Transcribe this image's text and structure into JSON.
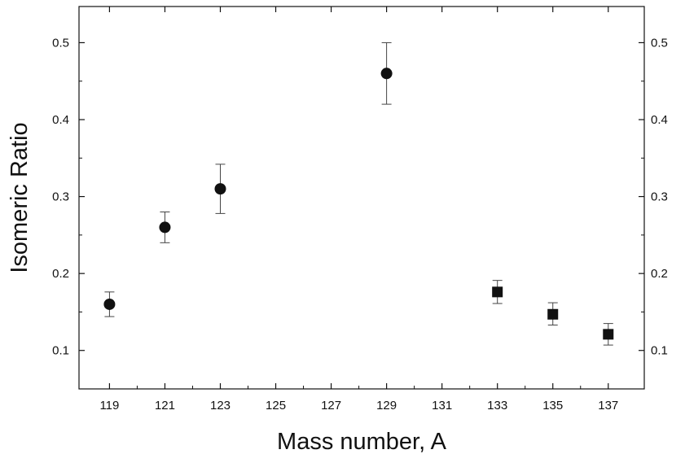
{
  "chart_data": {
    "type": "scatter",
    "title": "",
    "xlabel": "Mass number, A",
    "ylabel": "Isomeric Ratio",
    "xlim": [
      117.9,
      138.3
    ],
    "ylim": [
      0.05,
      0.547
    ],
    "x_ticks": [
      119,
      121,
      123,
      125,
      127,
      129,
      131,
      133,
      135,
      137
    ],
    "x_tick_labels": [
      "119",
      "121",
      "123",
      "125",
      "127",
      "129",
      "131",
      "133",
      "135",
      "137"
    ],
    "y_ticks": [
      0.1,
      0.2,
      0.3,
      0.4,
      0.5
    ],
    "y_tick_labels": [
      "0.1",
      "0.2",
      "0.3",
      "0.4",
      "0.5"
    ],
    "right_axis_mirrored": true,
    "grid": false,
    "legend": "none",
    "series": [
      {
        "marker": "circle",
        "color": "#111111",
        "points": [
          {
            "x": 119,
            "y": 0.16,
            "err_low": 0.144,
            "err_high": 0.176
          },
          {
            "x": 121,
            "y": 0.26,
            "err_low": 0.24,
            "err_high": 0.28
          },
          {
            "x": 123,
            "y": 0.31,
            "err_low": 0.278,
            "err_high": 0.342
          },
          {
            "x": 129,
            "y": 0.46,
            "err_low": 0.42,
            "err_high": 0.5
          }
        ]
      },
      {
        "marker": "square",
        "color": "#111111",
        "points": [
          {
            "x": 133,
            "y": 0.176,
            "err_low": 0.161,
            "err_high": 0.191
          },
          {
            "x": 135,
            "y": 0.147,
            "err_low": 0.133,
            "err_high": 0.162
          },
          {
            "x": 137,
            "y": 0.121,
            "err_low": 0.107,
            "err_high": 0.135
          }
        ]
      }
    ]
  }
}
